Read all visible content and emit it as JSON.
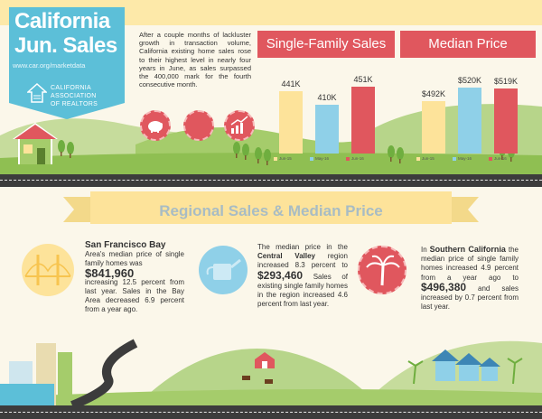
{
  "header": {
    "title_line1": "California",
    "title_line2": "Jun. Sales",
    "url": "www.car.org/marketdata",
    "org_line1": "CALIFORNIA",
    "org_line2": "ASSOCIATION",
    "org_line3": "OF REALTORS"
  },
  "intro": "After a couple months of lackluster growth in transaction volume, California existing home sales rose to their highest level in nearly four years in June, as sales surpassed the 400,000 mark for the fourth consecutive month.",
  "sales_panel": {
    "title": "Single-Family Sales"
  },
  "price_panel": {
    "title": "Median Price"
  },
  "chart_data": [
    {
      "type": "bar",
      "title": "Single-Family Sales",
      "categories": [
        "Jun-15",
        "May-16",
        "Jun-16"
      ],
      "values": [
        441000,
        410000,
        451000
      ],
      "labels": [
        "441K",
        "410K",
        "451K"
      ],
      "colors": [
        "#fde39a",
        "#8fd0e8",
        "#e0575e"
      ]
    },
    {
      "type": "bar",
      "title": "Median Price",
      "categories": [
        "Jun-15",
        "May-16",
        "Jun-16"
      ],
      "values": [
        492000,
        520000,
        519000
      ],
      "labels": [
        "$492K",
        "$520K",
        "$519K"
      ],
      "colors": [
        "#fde39a",
        "#8fd0e8",
        "#e0575e"
      ]
    }
  ],
  "regional_title": "Regional Sales & Median Price",
  "regions": {
    "sf": {
      "name": "San Francisco Bay",
      "t1": "Area's median price of single family homes was",
      "price": "$841,960",
      "t2": "increasing 12.5 percent from last year. Sales in the Bay Area decreased 6.9 percent from a year ago."
    },
    "cv": {
      "t0": "The median price in the",
      "name": "Central Valley",
      "t1": "region increased 8.3 percent to",
      "price": "$293,460",
      "t2": "Sales of existing single family homes in the region increased 4.6 percent from last year."
    },
    "sc": {
      "t0": "In",
      "name": "Southern California",
      "t1": "the median price of single family homes increased 4.9 percent from a year ago to",
      "price": "$496,380",
      "t2": "and sales increased by 0.7 percent from last year."
    }
  },
  "colors": {
    "teal": "#5cbfd8",
    "red": "#e0575e",
    "yellow": "#fde39a",
    "blue": "#8fd0e8",
    "green": "#a5cc6b"
  }
}
